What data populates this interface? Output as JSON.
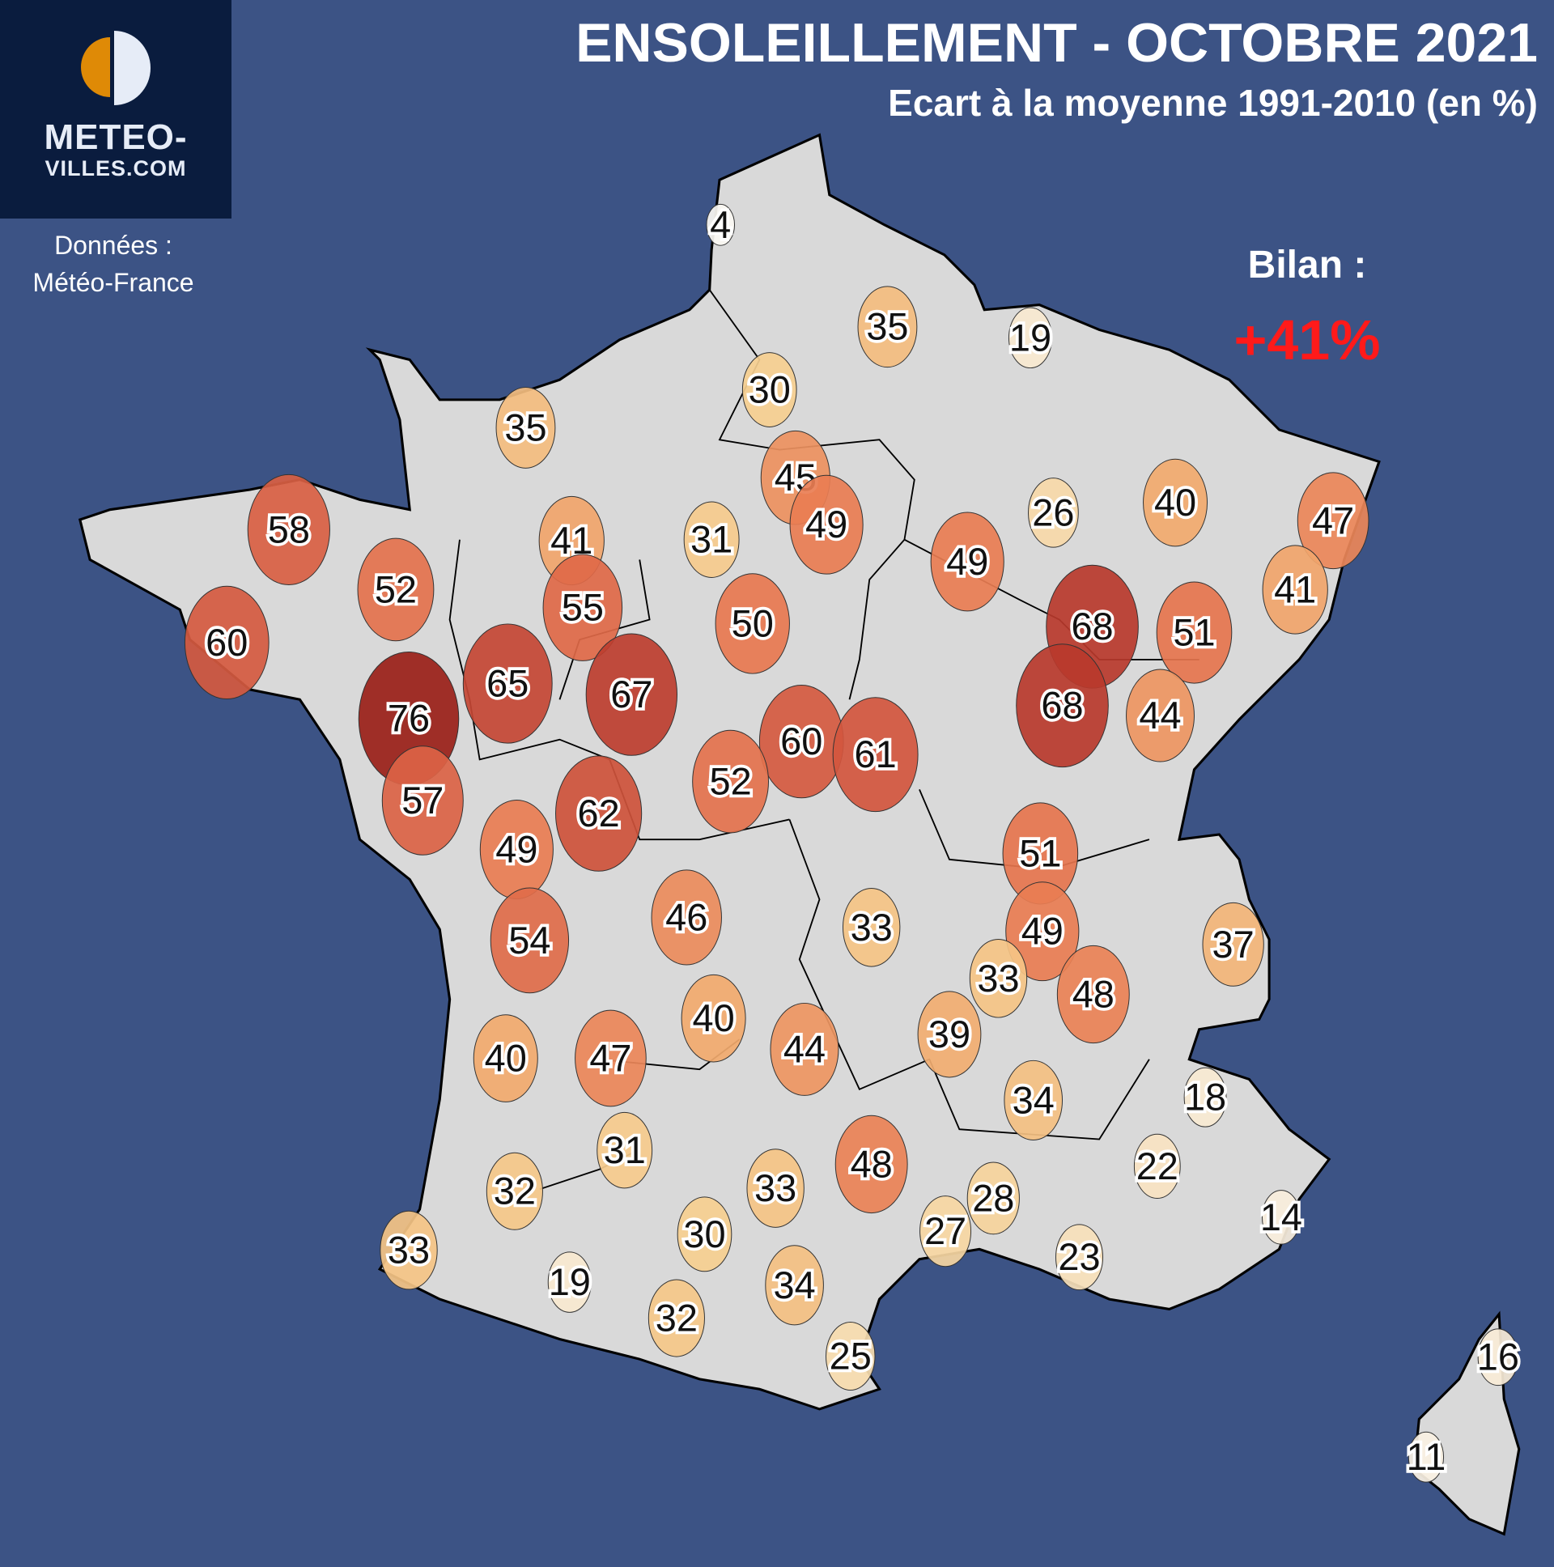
{
  "header": {
    "title": "ENSOLEILLEMENT - OCTOBRE 2021",
    "subtitle": "Ecart à la moyenne 1991-2010 (en %)"
  },
  "logo": {
    "line1": "METEO-",
    "line2": "VILLES.COM",
    "sun_left_color": "#df8a06",
    "sun_right_color": "#e6ecf7"
  },
  "source": {
    "line1": "Données :",
    "line2": "Météo-France"
  },
  "summary": {
    "label": "Bilan :",
    "value": "+41%",
    "color": "#ff1a1a"
  },
  "colors": {
    "sea": "#3c5385",
    "land": "#d9d9d9",
    "border": "#000000"
  },
  "stations": [
    4,
    35,
    19,
    30,
    35,
    45,
    49,
    58,
    41,
    31,
    26,
    40,
    47,
    52,
    55,
    49,
    50,
    68,
    51,
    41,
    60,
    65,
    67,
    76,
    68,
    44,
    60,
    61,
    52,
    57,
    62,
    49,
    51,
    46,
    33,
    54,
    49,
    37,
    33,
    48,
    40,
    44,
    39,
    40,
    47,
    34,
    18,
    31,
    22,
    33,
    48,
    32,
    28,
    30,
    27,
    14,
    33,
    19,
    23,
    34,
    32,
    25,
    16,
    11
  ]
}
